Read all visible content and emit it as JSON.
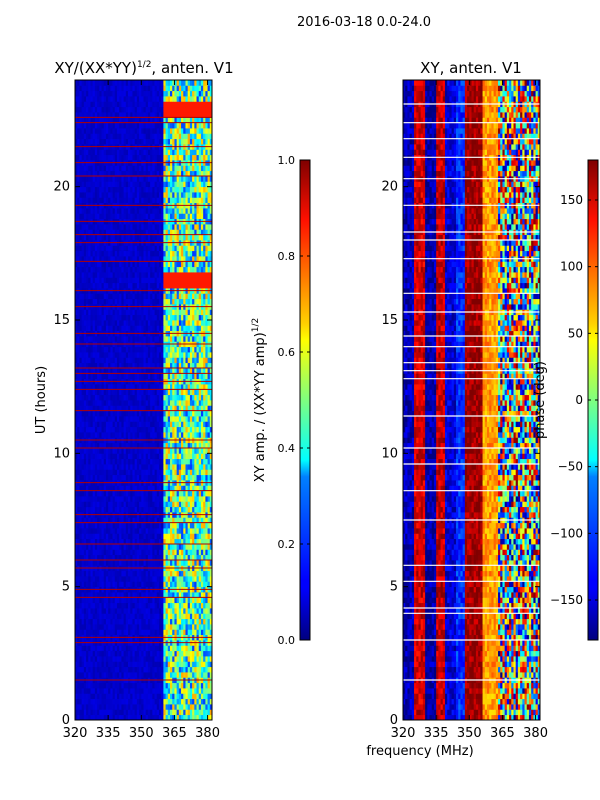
{
  "figure": {
    "suptitle": "2016-03-18 0.0-24.0",
    "xlabel": "frequency (MHz)"
  },
  "chart_data": [
    {
      "type": "heatmap",
      "title": "XY/(XX*YY)",
      "title_sup": "1/2",
      "title_suffix": ", anten. V1",
      "xlabel": "",
      "ylabel": "UT (hours)",
      "xlim": [
        320,
        382
      ],
      "ylim": [
        0,
        24
      ],
      "xticks": [
        320,
        335,
        350,
        365,
        380
      ],
      "yticks": [
        0,
        5,
        10,
        15,
        20
      ],
      "colorbar": {
        "label": "XY amp. / (XX*YY amp)",
        "label_sup": "1/2",
        "range": [
          0.0,
          1.0
        ],
        "ticks": [
          "0.0",
          "0.2",
          "0.4",
          "0.6",
          "0.8",
          "1.0"
        ],
        "tick_values": [
          0.0,
          0.2,
          0.4,
          0.6,
          0.8,
          1.0
        ]
      },
      "features": {
        "background_value": 0.05,
        "active_band_mhz": [
          360,
          382
        ],
        "active_band_value": 0.45,
        "hot_bursts": [
          {
            "ut": [
              22.7,
              23.2
            ],
            "value": 0.85
          },
          {
            "ut": [
              16.2,
              16.8
            ],
            "value": 0.85
          }
        ],
        "flagged_rows_ut": [
          1.5,
          2.9,
          3.1,
          4.6,
          4.9,
          5.7,
          6.0,
          6.6,
          7.4,
          7.7,
          8.6,
          8.9,
          10.2,
          10.5,
          11.6,
          12.4,
          12.7,
          13.0,
          13.2,
          14.1,
          14.5,
          15.5,
          16.1,
          17.2,
          17.9,
          18.2,
          18.7,
          19.3,
          20.4,
          20.9,
          21.5,
          22.4,
          22.6
        ]
      }
    },
    {
      "type": "heatmap",
      "title": "XY, anten. V1",
      "xlabel": "",
      "ylabel": "",
      "xlim": [
        320,
        382
      ],
      "ylim": [
        0,
        24
      ],
      "xticks": [
        320,
        335,
        350,
        365,
        380
      ],
      "yticks": [
        0,
        5,
        10,
        15,
        20
      ],
      "colorbar": {
        "label": "phase (deg)",
        "range": [
          -180,
          180
        ],
        "ticks": [
          "−150",
          "−100",
          "−50",
          "0",
          "50",
          "100",
          "150"
        ],
        "tick_values": [
          -150,
          -100,
          -50,
          0,
          50,
          100,
          150
        ]
      },
      "features": {
        "vertical_bands": [
          {
            "mhz": [
              320,
              325
            ],
            "value": -160
          },
          {
            "mhz": [
              325,
              330
            ],
            "value": 150
          },
          {
            "mhz": [
              330,
              335
            ],
            "value": -165
          },
          {
            "mhz": [
              335,
              339
            ],
            "value": 155
          },
          {
            "mhz": [
              339,
              344
            ],
            "value": -150
          },
          {
            "mhz": [
              344,
              348
            ],
            "value": -120
          },
          {
            "mhz": [
              348,
              356
            ],
            "value": 170
          },
          {
            "mhz": [
              356,
              363
            ],
            "value": 80
          },
          {
            "mhz": [
              363,
              382
            ],
            "value": 0
          }
        ],
        "white_rows_ut": [
          1.5,
          3.0,
          4.0,
          4.2,
          5.2,
          5.8,
          7.5,
          8.6,
          9.6,
          10.2,
          11.4,
          12.8,
          13.1,
          13.4,
          14.0,
          14.4,
          15.3,
          16.0,
          17.3,
          18.0,
          18.3,
          19.3,
          20.3,
          21.1,
          21.8,
          22.4,
          23.1
        ]
      }
    }
  ]
}
